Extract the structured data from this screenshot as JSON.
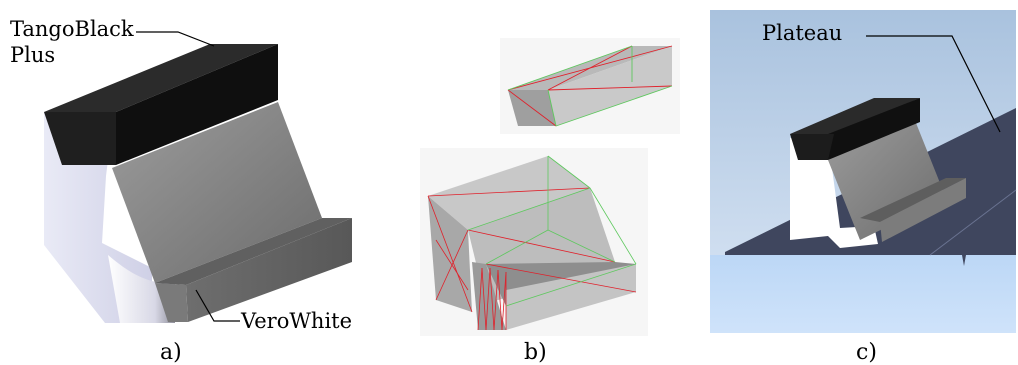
{
  "panel_a": {
    "label_top_line1": "TangoBlack",
    "label_top_line2": "Plus",
    "label_bottom": "VeroWhite",
    "caption": "a)"
  },
  "panel_b": {
    "caption": "b)"
  },
  "panel_c": {
    "label": "Plateau",
    "caption": "c)"
  },
  "colors": {
    "tango_black": "#151515",
    "vero_white": "#e2e3f2",
    "grey_face": "#8a8a8a",
    "mesh_edge_red": "#e0202a",
    "mesh_edge_green": "#5ec85e",
    "plateau": "#3f465e",
    "sky": "#bccfe6",
    "floor": "#c5dcf7"
  }
}
